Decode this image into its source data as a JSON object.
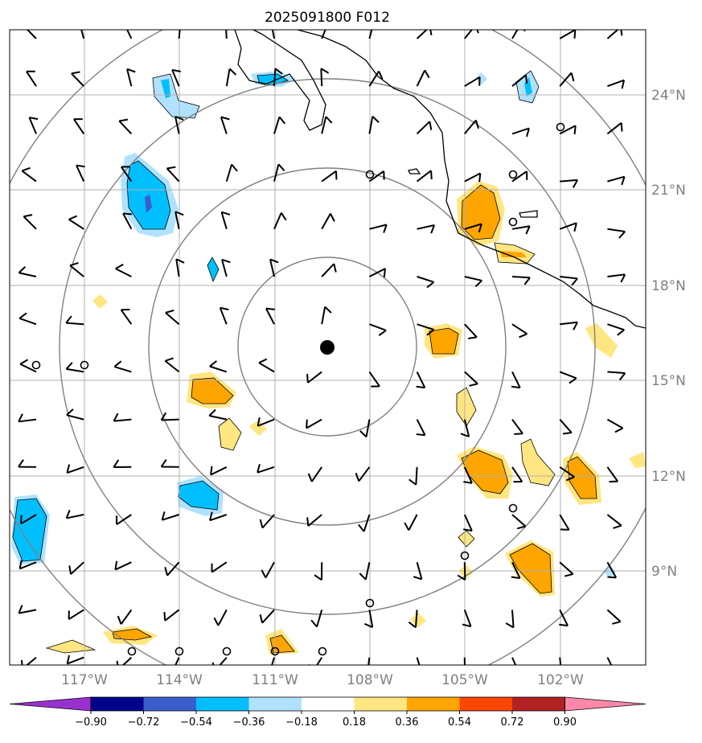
{
  "title": "2025091800 F012",
  "lat_labels": [
    "24°N",
    "21°N",
    "18°N",
    "15°N",
    "12°N",
    "9°N"
  ],
  "lon_labels": [
    "117°W",
    "114°W",
    "111°W",
    "108°W",
    "105°W",
    "102°W"
  ],
  "colorbar": {
    "ticks": [
      "−0.90",
      "−0.72",
      "−0.54",
      "−0.36",
      "−0.18",
      "0.18",
      "0.36",
      "0.54",
      "0.72",
      "0.90"
    ],
    "colors": [
      "#9a30d0",
      "#00008b",
      "#3a5fcd",
      "#00bfff",
      "#b0e2ff",
      "#ffffff",
      "#ffe680",
      "#ffa500",
      "#ff4500",
      "#b22222",
      "#ff88aa"
    ]
  },
  "storm_center": {
    "lat": "16.1°N",
    "lon": "109.5°W"
  }
}
